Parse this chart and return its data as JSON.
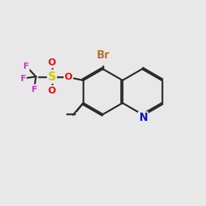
{
  "bg_color": "#e8e8e8",
  "bond_color": "#2a2a2a",
  "bond_width": 1.8,
  "dbo": 0.07,
  "atom_colors": {
    "Br": "#b87333",
    "O": "#ee1111",
    "S": "#cccc00",
    "F": "#cc33cc",
    "N": "#1111cc",
    "C": "#2a2a2a"
  },
  "fs": 10,
  "figsize": [
    3.0,
    3.0
  ],
  "dpi": 100,
  "xlim": [
    0,
    10
  ],
  "ylim": [
    0,
    10
  ]
}
